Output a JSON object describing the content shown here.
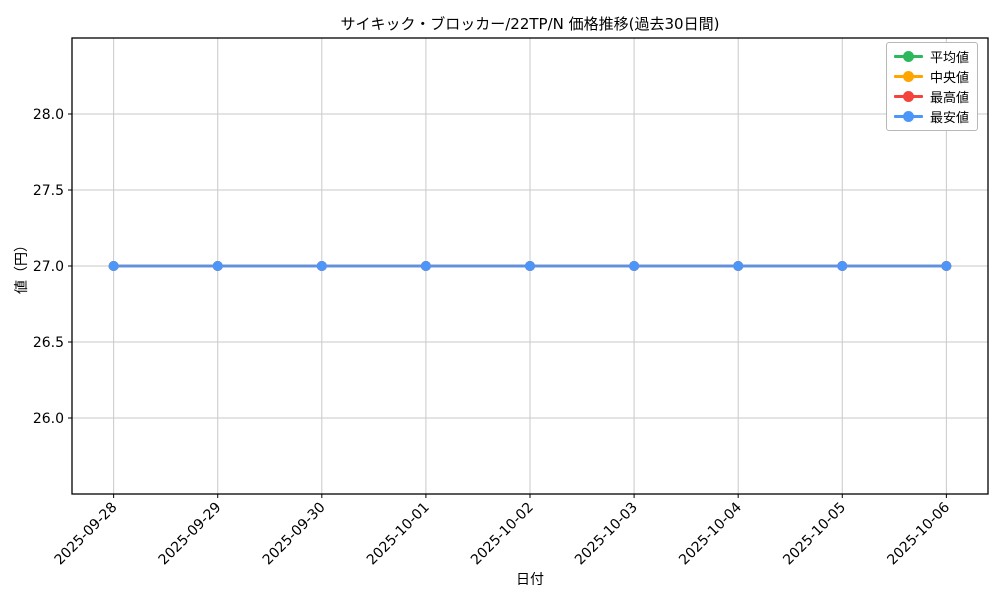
{
  "chart_data": {
    "type": "line",
    "title": "サイキック・ブロッカー/22TP/N 価格推移(過去30日間)",
    "xlabel": "日付",
    "ylabel": "値（円）",
    "x": [
      "2025-09-28",
      "2025-09-29",
      "2025-09-30",
      "2025-10-01",
      "2025-10-02",
      "2025-10-03",
      "2025-10-04",
      "2025-10-05",
      "2025-10-06"
    ],
    "series": [
      {
        "name": "平均値",
        "color": "#2eb85c",
        "values": [
          27.0,
          27.0,
          27.0,
          27.0,
          27.0,
          27.0,
          27.0,
          27.0,
          27.0
        ]
      },
      {
        "name": "中央値",
        "color": "#ffa500",
        "values": [
          27.0,
          27.0,
          27.0,
          27.0,
          27.0,
          27.0,
          27.0,
          27.0,
          27.0
        ]
      },
      {
        "name": "最高値",
        "color": "#f4433c",
        "values": [
          27.0,
          27.0,
          27.0,
          27.0,
          27.0,
          27.0,
          27.0,
          27.0,
          27.0
        ]
      },
      {
        "name": "最安値",
        "color": "#4d96f9",
        "values": [
          27.0,
          27.0,
          27.0,
          27.0,
          27.0,
          27.0,
          27.0,
          27.0,
          27.0
        ]
      }
    ],
    "yticks": [
      26.0,
      26.5,
      27.0,
      27.5,
      28.0
    ],
    "ytick_labels": [
      "26.0",
      "26.5",
      "27.0",
      "27.5",
      "28.0"
    ],
    "ylim": [
      25.5,
      28.5
    ],
    "xlim": [
      -0.4,
      8.4
    ],
    "grid": true,
    "legend_position": "upper right"
  }
}
